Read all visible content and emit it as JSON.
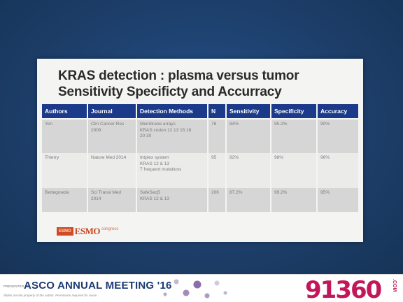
{
  "slide": {
    "title_line1": "KRAS detection : plasma versus tumor",
    "title_line2": "Sensitivity Specificty and Accurracy",
    "table": {
      "headers": [
        "Authors",
        "Journal",
        "Detection Methods",
        "N",
        "Sensitivity",
        "Specificity",
        "Accuracy"
      ],
      "rows": [
        {
          "authors": "Yen",
          "journal_1": "Clin Cancer Res",
          "journal_2": "2009",
          "method_1": "Membrane arrays",
          "method_2": "KRAS codon 12 13 15 18",
          "method_3": "20 30",
          "n": "76",
          "sensitivity": "84%",
          "specificity": "95.2%",
          "accuracy": "90%"
        },
        {
          "authors": "Thierry",
          "journal_1": "Nature Med 2014",
          "journal_2": "",
          "method_1": "Intplex system",
          "method_2": "KRAS 12 & 13",
          "method_3": "7 frequent mutations",
          "n": "95",
          "sensitivity": "92%",
          "specificity": "98%",
          "accuracy": "96%"
        },
        {
          "authors": "Bettegowda",
          "journal_1": "Sci Transl Med",
          "journal_2": "2014",
          "method_1": "SafeSeqS",
          "method_2": "KRAS 12 & 13",
          "method_3": "",
          "n": "206",
          "sensitivity": "87.2%",
          "specificity": "99.2%",
          "accuracy": "95%"
        }
      ]
    },
    "esmo": {
      "box": "ESMO",
      "name": "ESMO",
      "sub": "congress"
    }
  },
  "footer": {
    "presented": "PRESENTED AT:",
    "meeting": "ASCO ANNUAL MEETING '16",
    "disclaimer": "Slides are the property of the author. Permission required for reuse.",
    "logo": "91360",
    "logo_suffix": ".COM"
  }
}
